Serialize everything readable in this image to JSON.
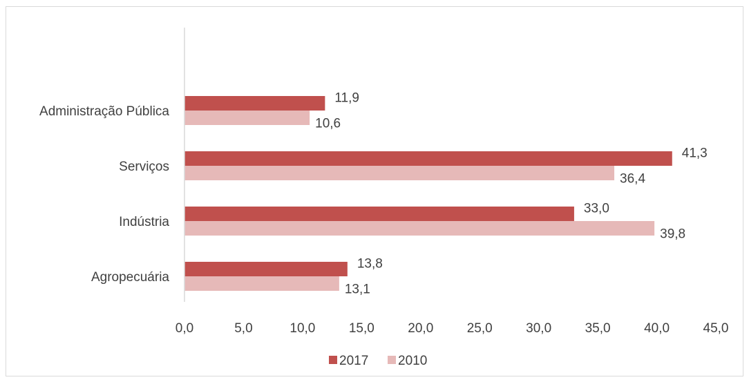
{
  "chart_data": {
    "type": "bar",
    "orientation": "horizontal",
    "categories": [
      "Agropecuária",
      "Indústria",
      "Serviços",
      "Administração Pública"
    ],
    "series": [
      {
        "name": "2017",
        "color": "#c0504d",
        "values": [
          13.8,
          33.0,
          41.3,
          11.9
        ]
      },
      {
        "name": "2010",
        "color": "#e6b9b8",
        "values": [
          13.1,
          39.8,
          36.4,
          10.6
        ]
      }
    ],
    "xlim": [
      0,
      45
    ],
    "xticks": [
      "0,0",
      "5,0",
      "10,0",
      "15,0",
      "20,0",
      "25,0",
      "30,0",
      "35,0",
      "40,0",
      "45,0"
    ],
    "data_labels": {
      "2017": [
        "13,8",
        "33,0",
        "41,3",
        "11,9"
      ],
      "2010": [
        "13,1",
        "39,8",
        "36,4",
        "10,6"
      ]
    },
    "legend_position": "bottom",
    "grid": false,
    "title": "",
    "xlabel": "",
    "ylabel": ""
  }
}
